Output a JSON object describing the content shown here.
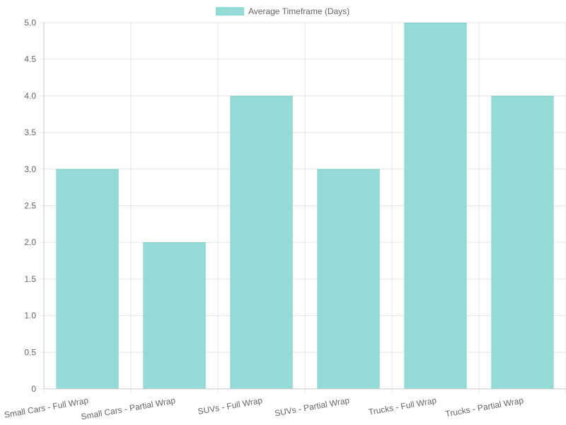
{
  "chart_data": {
    "type": "bar",
    "categories": [
      "Small Cars - Full Wrap",
      "Small Cars - Partial Wrap",
      "SUVs - Full Wrap",
      "SUVs - Partial Wrap",
      "Trucks - Full Wrap",
      "Trucks - Partial Wrap"
    ],
    "series": [
      {
        "name": "Average Timeframe (Days)",
        "values": [
          3,
          2,
          4,
          3,
          5,
          4
        ],
        "color": "#94dad6"
      }
    ],
    "y_ticks": [
      "0",
      "0.5",
      "1.0",
      "1.5",
      "2.0",
      "2.5",
      "3.0",
      "3.5",
      "4.0",
      "4.5",
      "5.0"
    ],
    "ylim": [
      0,
      5
    ],
    "grid": true,
    "legend": "top-center",
    "colors": {
      "grid": "#e5e5e5",
      "axis": "#c8c8c8",
      "text": "#666666"
    }
  }
}
